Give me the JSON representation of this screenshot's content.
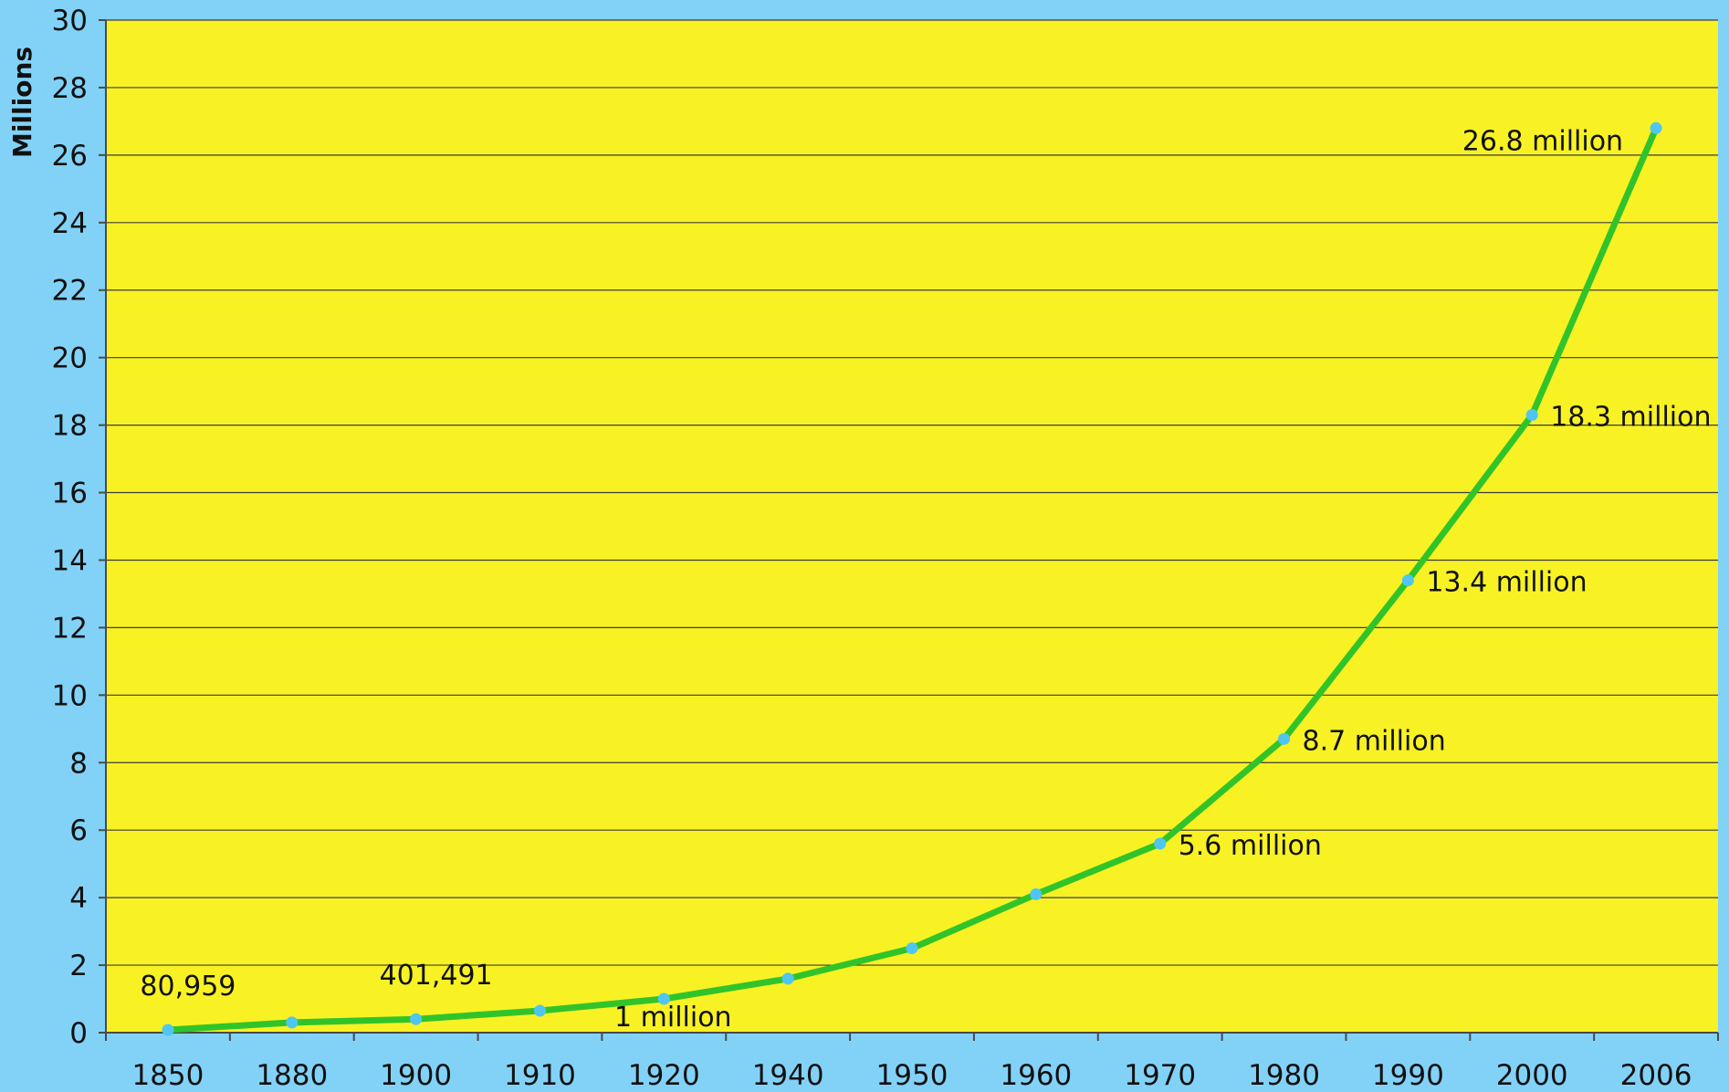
{
  "chart_data": {
    "type": "line",
    "title": "",
    "xlabel": "",
    "ylabel": "Millions",
    "ylim": [
      0,
      30
    ],
    "yticks": [
      0,
      2,
      4,
      6,
      8,
      10,
      12,
      14,
      16,
      18,
      20,
      22,
      24,
      26,
      28,
      30
    ],
    "categories": [
      "1850",
      "1880",
      "1900",
      "1910",
      "1920",
      "1940",
      "1950",
      "1960",
      "1970",
      "1980",
      "1990",
      "2000",
      "2006"
    ],
    "series": [
      {
        "values": [
          0.081,
          0.3,
          0.4,
          0.65,
          1.0,
          1.6,
          2.5,
          4.1,
          5.6,
          8.7,
          13.4,
          18.3,
          26.8
        ]
      }
    ],
    "annotations": [
      {
        "index": 0,
        "text": "80,959",
        "anchor": "above"
      },
      {
        "index": 2,
        "text": "401,491",
        "anchor": "above"
      },
      {
        "index": 4,
        "text": "1 million",
        "anchor": "below-left"
      },
      {
        "index": 8,
        "text": "5.6 million",
        "anchor": "right"
      },
      {
        "index": 9,
        "text": "8.7 million",
        "anchor": "right"
      },
      {
        "index": 10,
        "text": "13.4 million",
        "anchor": "right"
      },
      {
        "index": 11,
        "text": "18.3 million",
        "anchor": "right"
      },
      {
        "index": 12,
        "text": "26.8 million",
        "anchor": "left"
      }
    ],
    "grid": true,
    "legend": "none",
    "colors": {
      "background": "#82d2f8",
      "plot_area": "#f8f224",
      "line": "#31c42a",
      "marker": "#4fc6f2",
      "gridline": "#3c3c3c"
    }
  }
}
